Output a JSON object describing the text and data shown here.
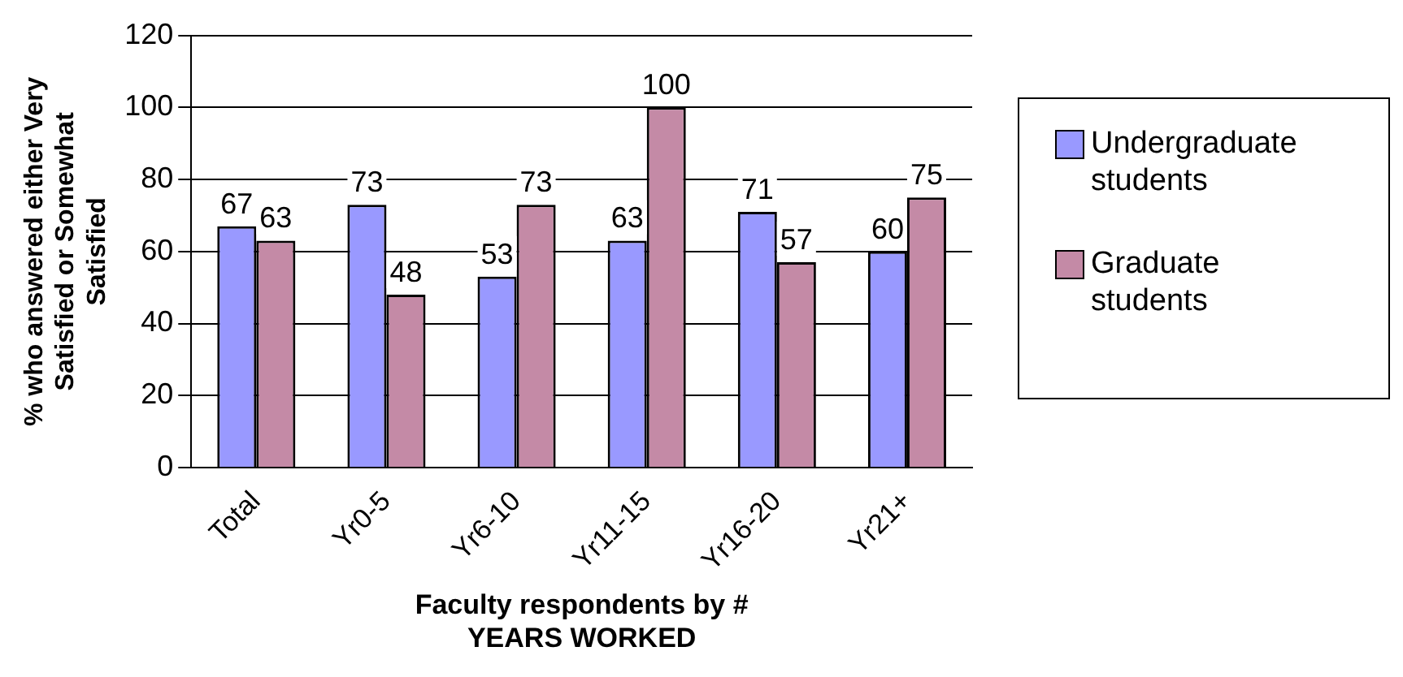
{
  "chart_data": {
    "type": "bar",
    "xlabel": "Faculty respondents by # YEARS WORKED",
    "ylabel": "% who answered either Very Satisfied or Somewhat Satisfied",
    "categories": [
      "Total",
      "Yr0-5",
      "Yr6-10",
      "Yr11-15",
      "Yr16-20",
      "Yr21+"
    ],
    "series": [
      {
        "name": "Undergraduate students",
        "color": "#9999ff",
        "values": [
          67,
          73,
          53,
          63,
          71,
          60
        ]
      },
      {
        "name": "Graduate students",
        "color": "#c48aa6",
        "values": [
          63,
          48,
          73,
          100,
          57,
          75
        ]
      }
    ],
    "ylim": [
      0,
      120
    ],
    "yticks": [
      0,
      20,
      40,
      60,
      80,
      100,
      120
    ],
    "grid": "y",
    "legend": "right",
    "data_labels": true
  }
}
